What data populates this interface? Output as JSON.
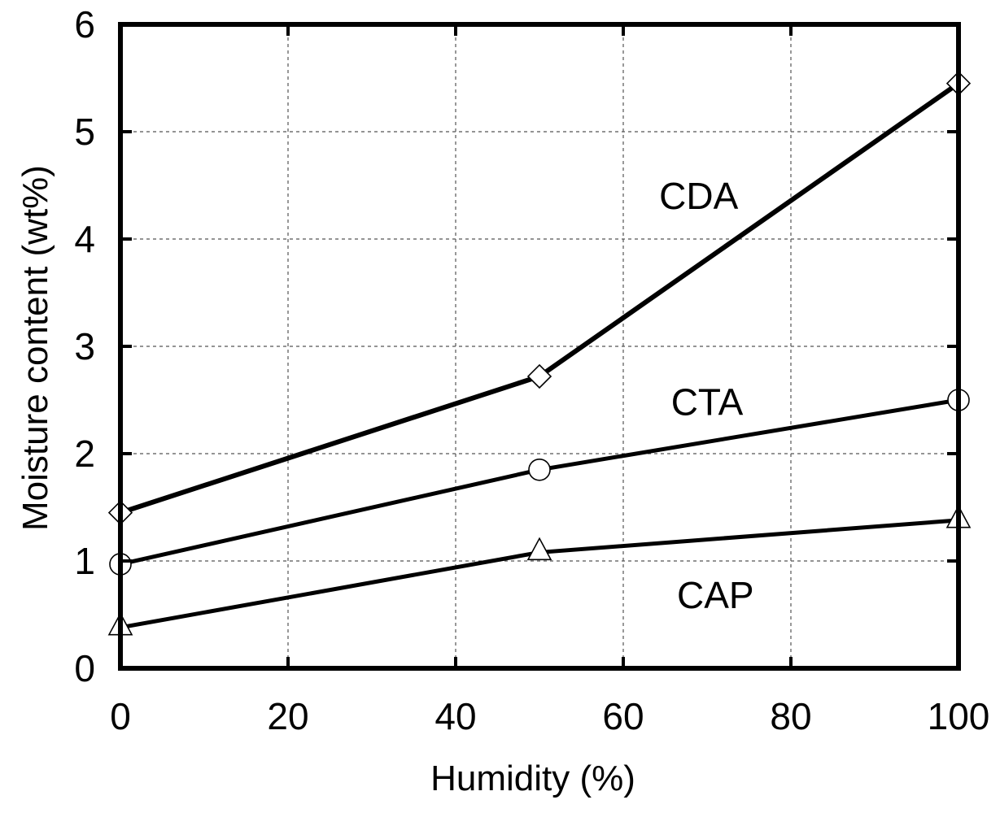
{
  "chart_data": {
    "type": "line",
    "title": "",
    "xlabel": "Humidity (%)",
    "ylabel": "Moisture content (wt%)",
    "xlim": [
      0,
      100
    ],
    "ylim": [
      0,
      6
    ],
    "xticks": [
      0,
      20,
      40,
      60,
      80,
      100
    ],
    "yticks": [
      0,
      1,
      2,
      3,
      4,
      5,
      6
    ],
    "xtick_labels": [
      "0",
      "20",
      "40",
      "60",
      "80",
      "100"
    ],
    "ytick_labels": [
      "0",
      "1",
      "2",
      "3",
      "4",
      "5",
      "6"
    ],
    "grid": true,
    "legend": "inline labels",
    "x": [
      0,
      50,
      100
    ],
    "series": [
      {
        "name": "CDA",
        "marker": "diamond",
        "values": [
          1.45,
          2.72,
          5.45
        ],
        "label_at": [
          69,
          4.4
        ]
      },
      {
        "name": "CTA",
        "marker": "circle",
        "values": [
          0.97,
          1.85,
          2.5
        ],
        "label_at": [
          70,
          2.48
        ]
      },
      {
        "name": "CAP",
        "marker": "triangle",
        "values": [
          0.38,
          1.08,
          1.38
        ],
        "label_at": [
          71,
          0.68
        ]
      }
    ],
    "colors": {
      "line": "#000000",
      "marker_fill": "#ffffff",
      "grid": "#555555"
    }
  }
}
